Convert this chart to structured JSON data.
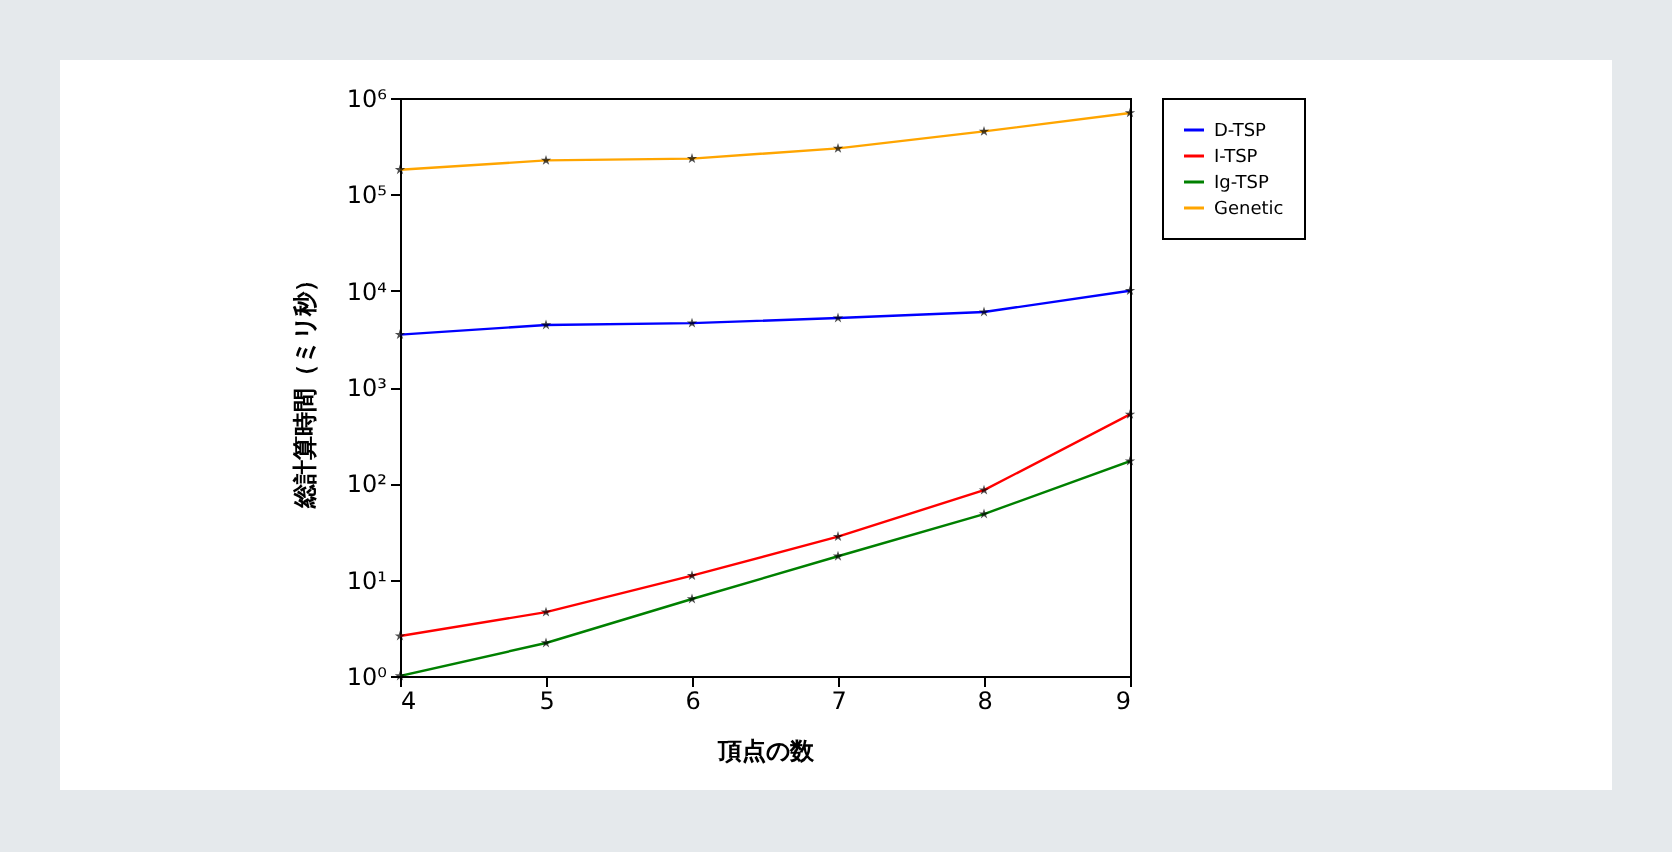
{
  "chart_data": {
    "type": "line",
    "xlabel": "頂点の数",
    "ylabel": "総計算時間（ミリ秒）",
    "x": [
      4,
      5,
      6,
      7,
      8,
      9
    ],
    "series": [
      {
        "name": "D-TSP",
        "color": "#0000ff",
        "values": [
          3500,
          4400,
          4600,
          5200,
          6000,
          10000
        ]
      },
      {
        "name": "I-TSP",
        "color": "#ff0000",
        "values": [
          2.6,
          4.6,
          11,
          28,
          85,
          520
        ]
      },
      {
        "name": "Ig-TSP",
        "color": "#008000",
        "values": [
          1.0,
          2.2,
          6.3,
          17.5,
          48,
          170
        ]
      },
      {
        "name": "Genetic",
        "color": "#ffa500",
        "values": [
          180000,
          225000,
          235000,
          300000,
          450000,
          700000
        ]
      }
    ],
    "log": "y",
    "xlim": [
      4,
      9
    ],
    "xticks": [
      4,
      5,
      6,
      7,
      8,
      9
    ],
    "ylim": [
      1,
      1000000
    ],
    "yticks": [
      {
        "value": 1,
        "label": "10⁰"
      },
      {
        "value": 10,
        "label": "10¹"
      },
      {
        "value": 100,
        "label": "10²"
      },
      {
        "value": 1000,
        "label": "10³"
      },
      {
        "value": 10000,
        "label": "10⁴"
      },
      {
        "value": 100000,
        "label": "10⁵"
      },
      {
        "value": 1000000,
        "label": "10⁶"
      }
    ],
    "grid": false,
    "legend": "top right",
    "marker": "star",
    "line_style": "solid"
  }
}
